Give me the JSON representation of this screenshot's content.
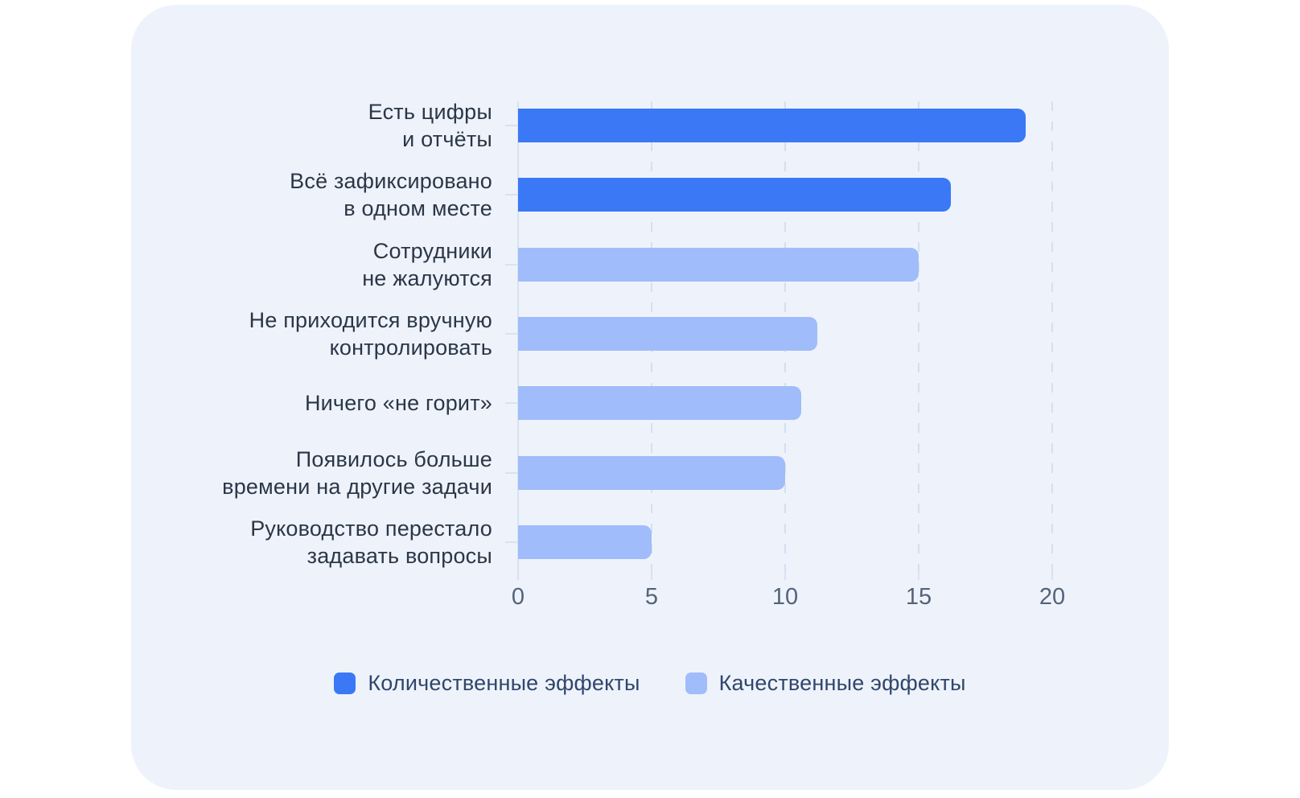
{
  "chart_data": {
    "type": "bar",
    "orientation": "horizontal",
    "title": "",
    "categories": [
      "Есть цифры и отчёты",
      "Всё зафиксировано в одном месте",
      "Сотрудники не жалуются",
      "Не приходится вручную контролировать",
      "Ничего «не горит»",
      "Появилось больше времени на другие задачи",
      "Руководство перестало задавать вопросы"
    ],
    "categories_display_lines": [
      [
        "Есть цифры",
        "и отчёты"
      ],
      [
        "Всё зафиксировано",
        "в одном месте"
      ],
      [
        "Сотрудники",
        "не жалуются"
      ],
      [
        "Не приходится вручную",
        "контролировать"
      ],
      [
        "Ничего «не горит»"
      ],
      [
        "Появилось больше",
        "времени на другие задачи"
      ],
      [
        "Руководство перестало",
        "задавать вопросы"
      ]
    ],
    "values": [
      19,
      16.2,
      15,
      11.2,
      10.6,
      10,
      5
    ],
    "bar_series": [
      "Количественные эффекты",
      "Количественные эффекты",
      "Качественные эффекты",
      "Качественные эффекты",
      "Качественные эффекты",
      "Качественные эффекты",
      "Качественные эффекты"
    ],
    "series": [
      {
        "name": "Количественные эффекты",
        "color": "#3A78F6",
        "values": [
          19,
          16.2,
          null,
          null,
          null,
          null,
          null
        ]
      },
      {
        "name": "Качественные эффекты",
        "color": "#A0BCFA",
        "values": [
          null,
          null,
          15,
          11.2,
          10.6,
          10,
          5
        ]
      }
    ],
    "xlabel": "",
    "ylabel": "",
    "xlim": [
      0,
      22.8
    ],
    "xticks": [
      0,
      5,
      10,
      15,
      20
    ],
    "grid": "vertical dashed",
    "legend_position": "bottom-center"
  },
  "colors": {
    "page_background": "#FFFFFF",
    "card_background": "#EEF3FB",
    "quantitative_bar": "#3A78F6",
    "qualitative_bar": "#A0BCFA",
    "gridline": "#D5DFF1",
    "axis_line": "#D9E2F2",
    "category_label_text": "#2B3647",
    "tick_label_text": "#536379",
    "legend_text": "#31466B"
  },
  "legend": {
    "items": [
      {
        "label": "Количественные эффекты",
        "color": "#3A78F6"
      },
      {
        "label": "Качественные эффекты",
        "color": "#A0BCFA"
      }
    ]
  }
}
